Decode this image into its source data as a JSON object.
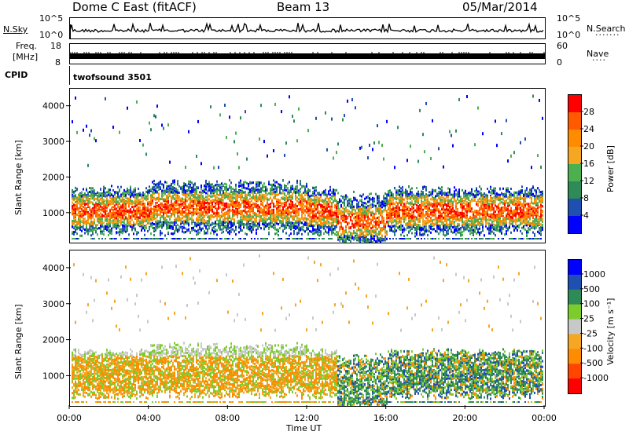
{
  "header": {
    "station": "Dome C East (fitACF)",
    "beam": "Beam 13",
    "date": "05/Mar/2014"
  },
  "nsky": {
    "label": "N.Sky",
    "ticks": [
      "10^5",
      "10^0"
    ],
    "right_label": "N.Search",
    "right_ticks": [
      "10^5",
      "10^0"
    ]
  },
  "freq": {
    "label_line1": "Freq.",
    "label_line2": "[MHz]",
    "ticks": [
      "18",
      "8"
    ],
    "right_label": "Nave",
    "right_ticks": [
      "60",
      "0"
    ]
  },
  "cpid": {
    "label": "CPID",
    "value": "twofsound 3501"
  },
  "colors": {
    "power": [
      "#0000ff",
      "#1f4fb0",
      "#2e8b57",
      "#4caf50",
      "#f5a623",
      "#ff8c00",
      "#ff5a00",
      "#ff0000"
    ],
    "velocity": [
      "#ff0000",
      "#ff4500",
      "#ff8c00",
      "#f5a623",
      "#c8c8c8",
      "#7ccd2c",
      "#2e8b57",
      "#1f4fb0",
      "#0000ff"
    ]
  },
  "chart_data": [
    {
      "type": "heatmap",
      "name": "power",
      "ylabel": "Slant Range [km]",
      "ylim": [
        180,
        4500
      ],
      "yticks": [
        1000,
        2000,
        3000,
        4000
      ],
      "xlim": [
        0,
        24
      ],
      "colorbar_label": "Power [dB]",
      "colorbar_ticks": [
        "4",
        "8",
        "12",
        "16",
        "20",
        "24",
        "28"
      ],
      "colorbar_range": [
        0,
        32
      ]
    },
    {
      "type": "heatmap",
      "name": "velocity",
      "ylabel": "Slant Range [km]",
      "ylim": [
        180,
        4500
      ],
      "yticks": [
        1000,
        2000,
        3000,
        4000
      ],
      "xlim": [
        0,
        24
      ],
      "colorbar_label": "Velocity [m s⁻¹]",
      "colorbar_ticks": [
        "-1000",
        "-500",
        "-100",
        "-25",
        "25",
        "100",
        "500",
        "1000"
      ]
    }
  ],
  "xaxis": {
    "label": "Time UT",
    "ticks": [
      "00:00",
      "04:00",
      "08:00",
      "12:00",
      "16:00",
      "20:00",
      "00:00"
    ]
  }
}
